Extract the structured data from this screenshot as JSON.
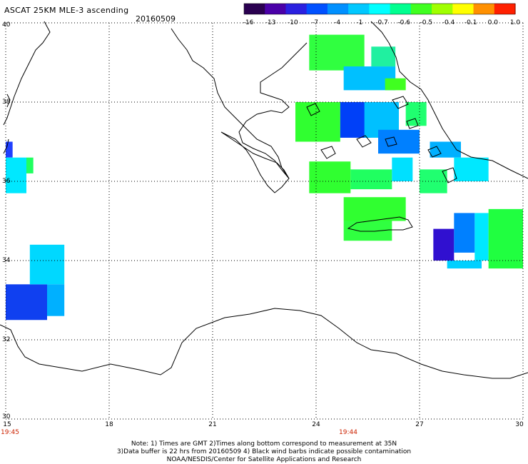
{
  "header": {
    "title": "ASCAT 25KM MLE-3 ascending",
    "date": "20160509"
  },
  "colorbar": {
    "tick_labels": [
      "-16",
      "-13",
      "-10",
      "-7",
      "-4",
      "-1",
      "-0.7",
      "-0.6",
      "-0.5",
      "-0.4",
      "-0.1",
      "0.0",
      "1.0"
    ],
    "colors": [
      "#2a0050",
      "#4a00a8",
      "#2a20e0",
      "#0050ff",
      "#0090ff",
      "#00c8ff",
      "#00ffff",
      "#00ff90",
      "#40ff20",
      "#a0ff00",
      "#ffff00",
      "#ff9000",
      "#ff2000"
    ]
  },
  "axes": {
    "lat_labels": [
      "40",
      "38",
      "36",
      "34",
      "32",
      "30"
    ],
    "lon_labels": [
      "15",
      "18",
      "21",
      "24",
      "27",
      "30"
    ],
    "times": [
      {
        "label": "19:45",
        "lon": 15
      },
      {
        "label": "19:44",
        "lon": 24
      }
    ]
  },
  "map_extent": {
    "lon": [
      15,
      30
    ],
    "lat": [
      30,
      40
    ]
  },
  "data_patches": [
    {
      "lon": [
        15.0,
        15.2
      ],
      "lat": [
        36.6,
        37.0
      ],
      "color": "#2040ff"
    },
    {
      "lon": [
        15.0,
        15.6
      ],
      "lat": [
        35.7,
        36.6
      ],
      "color": "#00e8ff"
    },
    {
      "lon": [
        15.6,
        15.8
      ],
      "lat": [
        36.2,
        36.6
      ],
      "color": "#20ff60"
    },
    {
      "lon": [
        15.0,
        16.2
      ],
      "lat": [
        32.5,
        33.4
      ],
      "color": "#1040f0"
    },
    {
      "lon": [
        15.7,
        16.7
      ],
      "lat": [
        33.4,
        34.4
      ],
      "color": "#00d8ff"
    },
    {
      "lon": [
        16.2,
        16.7
      ],
      "lat": [
        32.6,
        33.4
      ],
      "color": "#00b0ff"
    },
    {
      "lon": [
        23.8,
        25.4
      ],
      "lat": [
        38.8,
        39.7
      ],
      "color": "#30ff40"
    },
    {
      "lon": [
        24.8,
        26.3
      ],
      "lat": [
        38.3,
        38.9
      ],
      "color": "#00c0ff"
    },
    {
      "lon": [
        25.6,
        26.3
      ],
      "lat": [
        38.9,
        39.4
      ],
      "color": "#20f0a0"
    },
    {
      "lon": [
        26.0,
        26.6
      ],
      "lat": [
        38.3,
        38.6
      ],
      "color": "#40ff20"
    },
    {
      "lon": [
        23.4,
        24.7
      ],
      "lat": [
        37.0,
        38.0
      ],
      "color": "#30ff30"
    },
    {
      "lon": [
        24.7,
        25.6
      ],
      "lat": [
        37.1,
        38.0
      ],
      "color": "#0040f8"
    },
    {
      "lon": [
        25.4,
        26.4
      ],
      "lat": [
        37.1,
        38.0
      ],
      "color": "#00c0ff"
    },
    {
      "lon": [
        25.8,
        27.0
      ],
      "lat": [
        36.7,
        37.3
      ],
      "color": "#0080ff"
    },
    {
      "lon": [
        26.6,
        27.2
      ],
      "lat": [
        37.4,
        38.0
      ],
      "color": "#20ff70"
    },
    {
      "lon": [
        23.8,
        25.0
      ],
      "lat": [
        35.7,
        36.5
      ],
      "color": "#30ff30"
    },
    {
      "lon": [
        25.0,
        26.2
      ],
      "lat": [
        35.8,
        36.3
      ],
      "color": "#20ff60"
    },
    {
      "lon": [
        26.2,
        26.8
      ],
      "lat": [
        36.0,
        36.6
      ],
      "color": "#00e0ff"
    },
    {
      "lon": [
        27.0,
        27.8
      ],
      "lat": [
        35.7,
        36.3
      ],
      "color": "#20ff70"
    },
    {
      "lon": [
        27.3,
        28.2
      ],
      "lat": [
        36.6,
        37.0
      ],
      "color": "#00b0ff"
    },
    {
      "lon": [
        28.0,
        29.0
      ],
      "lat": [
        36.0,
        36.6
      ],
      "color": "#00e8ff"
    },
    {
      "lon": [
        24.8,
        26.6
      ],
      "lat": [
        35.0,
        35.6
      ],
      "color": "#30ff30"
    },
    {
      "lon": [
        24.8,
        26.2
      ],
      "lat": [
        34.5,
        35.0
      ],
      "color": "#30ff40"
    },
    {
      "lon": [
        27.4,
        28.0
      ],
      "lat": [
        34.0,
        34.8
      ],
      "color": "#3010d0"
    },
    {
      "lon": [
        28.0,
        28.6
      ],
      "lat": [
        34.2,
        35.2
      ],
      "color": "#0080ff"
    },
    {
      "lon": [
        28.6,
        29.0
      ],
      "lat": [
        34.0,
        35.2
      ],
      "color": "#00e8ff"
    },
    {
      "lon": [
        29.0,
        30.0
      ],
      "lat": [
        33.8,
        35.3
      ],
      "color": "#20ff40"
    },
    {
      "lon": [
        27.8,
        28.8
      ],
      "lat": [
        33.8,
        34.0
      ],
      "color": "#00d0ff"
    }
  ],
  "footer": {
    "line1": "Note: 1) Times are GMT 2)Times along bottom correspond to measurement at 35N",
    "line2": "3)Data buffer is 22 hrs from 20160509 4) Black wind barbs indicate possible contamination",
    "line3": "NOAA/NESDIS/Center for Satellite Applications and Research"
  }
}
